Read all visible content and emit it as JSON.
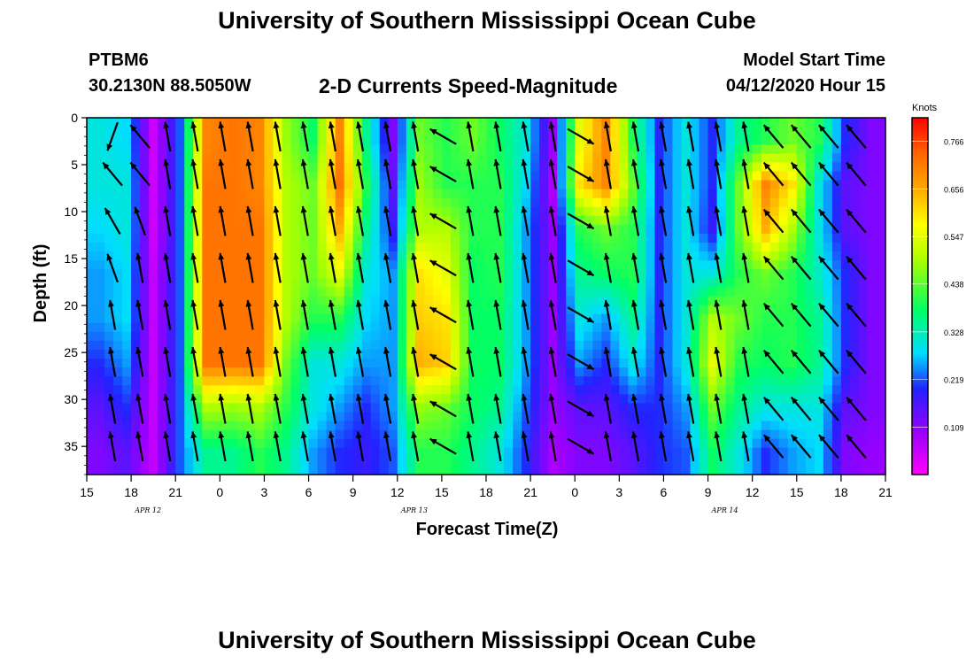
{
  "header": {
    "title": "University of Southern Mississippi Ocean Cube",
    "station": "PTBM6",
    "coords": "30.2130N 88.5050W",
    "chart_title": "2-D Currents Speed-Magnitude",
    "model_start_label": "Model Start Time",
    "model_start_value": "04/12/2020 Hour 15"
  },
  "footer": {
    "title": "University of Southern Mississippi Ocean Cube"
  },
  "chart_data": {
    "type": "heatmap",
    "title": "2-D Currents Speed-Magnitude",
    "xlabel": "Forecast Time(Z)",
    "ylabel": "Depth (ft)",
    "x_ticks": [
      "15",
      "18",
      "21",
      "0",
      "3",
      "6",
      "9",
      "12",
      "15",
      "18",
      "21",
      "0",
      "3",
      "6",
      "9",
      "12",
      "15",
      "18",
      "21"
    ],
    "date_labels": [
      {
        "text": "APR 12",
        "after_tick": 1
      },
      {
        "text": "APR 13",
        "after_tick": 7
      },
      {
        "text": "APR 14",
        "after_tick": 14
      }
    ],
    "y_ticks": [
      0,
      5,
      10,
      15,
      20,
      25,
      30,
      35
    ],
    "y_range": [
      0,
      38
    ],
    "colorbar": {
      "label": "Knots",
      "ticks": [
        "0.766",
        "0.656",
        "0.547",
        "0.438",
        "0.328",
        "0.219",
        "0.109"
      ],
      "range": [
        0,
        0.82
      ]
    },
    "depths_ft": [
      0,
      5,
      10,
      15,
      20,
      25,
      30,
      35
    ],
    "speed_knots": [
      [
        0.3,
        0.28,
        0.05,
        0.22,
        0.7,
        0.72,
        0.7,
        0.48,
        0.38,
        0.7,
        0.35,
        0.12,
        0.45,
        0.4,
        0.45,
        0.38,
        0.3,
        0.1,
        0.55,
        0.7,
        0.4,
        0.2,
        0.3,
        0.2,
        0.35,
        0.4,
        0.45,
        0.4,
        0.2,
        0.12
      ],
      [
        0.3,
        0.3,
        0.05,
        0.22,
        0.72,
        0.72,
        0.7,
        0.5,
        0.45,
        0.72,
        0.4,
        0.15,
        0.48,
        0.4,
        0.4,
        0.4,
        0.28,
        0.08,
        0.6,
        0.7,
        0.45,
        0.2,
        0.3,
        0.2,
        0.45,
        0.7,
        0.6,
        0.3,
        0.15,
        0.12
      ],
      [
        0.28,
        0.3,
        0.05,
        0.22,
        0.72,
        0.72,
        0.72,
        0.5,
        0.45,
        0.65,
        0.35,
        0.18,
        0.5,
        0.5,
        0.4,
        0.4,
        0.25,
        0.1,
        0.4,
        0.45,
        0.4,
        0.2,
        0.3,
        0.18,
        0.45,
        0.65,
        0.5,
        0.3,
        0.15,
        0.12
      ],
      [
        0.25,
        0.28,
        0.06,
        0.22,
        0.72,
        0.72,
        0.72,
        0.5,
        0.45,
        0.55,
        0.3,
        0.25,
        0.6,
        0.55,
        0.38,
        0.4,
        0.25,
        0.1,
        0.35,
        0.38,
        0.4,
        0.2,
        0.3,
        0.3,
        0.4,
        0.45,
        0.4,
        0.32,
        0.2,
        0.12
      ],
      [
        0.25,
        0.28,
        0.06,
        0.22,
        0.72,
        0.72,
        0.72,
        0.5,
        0.4,
        0.4,
        0.28,
        0.25,
        0.62,
        0.6,
        0.38,
        0.38,
        0.25,
        0.1,
        0.3,
        0.25,
        0.35,
        0.2,
        0.3,
        0.5,
        0.45,
        0.4,
        0.4,
        0.35,
        0.2,
        0.12
      ],
      [
        0.2,
        0.25,
        0.06,
        0.22,
        0.72,
        0.72,
        0.72,
        0.45,
        0.3,
        0.3,
        0.25,
        0.25,
        0.65,
        0.62,
        0.38,
        0.38,
        0.25,
        0.1,
        0.25,
        0.2,
        0.3,
        0.2,
        0.3,
        0.55,
        0.4,
        0.38,
        0.4,
        0.35,
        0.2,
        0.12
      ],
      [
        0.15,
        0.2,
        0.06,
        0.22,
        0.5,
        0.48,
        0.5,
        0.4,
        0.3,
        0.25,
        0.2,
        0.25,
        0.48,
        0.45,
        0.38,
        0.35,
        0.22,
        0.1,
        0.15,
        0.15,
        0.2,
        0.2,
        0.25,
        0.45,
        0.35,
        0.3,
        0.3,
        0.3,
        0.15,
        0.12
      ],
      [
        0.12,
        0.15,
        0.06,
        0.22,
        0.35,
        0.35,
        0.4,
        0.35,
        0.25,
        0.2,
        0.18,
        0.22,
        0.4,
        0.4,
        0.35,
        0.3,
        0.2,
        0.08,
        0.12,
        0.12,
        0.15,
        0.2,
        0.22,
        0.38,
        0.3,
        0.2,
        0.25,
        0.28,
        0.12,
        0.1
      ]
    ],
    "arrows_time_step": 1,
    "arrows_depth_ft": [
      2,
      6,
      11,
      16,
      21,
      26,
      31,
      35
    ],
    "arrow_directions_deg": [
      [
        200,
        -40,
        -10,
        -10,
        -10,
        -10,
        -10,
        -10,
        -10,
        -10,
        -10,
        -10,
        -60,
        -10,
        -10,
        -10,
        -10,
        120,
        -10,
        -10,
        -10,
        -10,
        -10,
        -10,
        -40,
        -40,
        -40,
        -40
      ],
      [
        -40,
        -40,
        -10,
        -10,
        -10,
        -10,
        -10,
        -10,
        -10,
        -10,
        -10,
        -10,
        -60,
        -10,
        -10,
        -10,
        -10,
        120,
        -10,
        -10,
        -10,
        -10,
        -10,
        -10,
        -40,
        -40,
        -40,
        -40
      ],
      [
        -30,
        -20,
        -10,
        -10,
        -10,
        -10,
        -10,
        -10,
        -10,
        -10,
        -10,
        -10,
        -60,
        -10,
        -10,
        -10,
        -10,
        120,
        -10,
        -10,
        -10,
        -10,
        -10,
        -10,
        -40,
        -40,
        -40,
        -40
      ],
      [
        -20,
        -10,
        -10,
        -10,
        -10,
        -10,
        -10,
        -10,
        -10,
        -10,
        -10,
        -10,
        -60,
        -10,
        -10,
        -10,
        -10,
        120,
        -10,
        -10,
        -10,
        -10,
        -10,
        -10,
        -40,
        -40,
        -40,
        -40
      ],
      [
        -10,
        -10,
        -10,
        -10,
        -10,
        -10,
        -10,
        -10,
        -10,
        -10,
        -10,
        -10,
        -60,
        -10,
        -10,
        -10,
        -10,
        120,
        -10,
        -10,
        -10,
        -10,
        -10,
        -10,
        -40,
        -40,
        -40,
        -40
      ],
      [
        -10,
        -10,
        -10,
        -10,
        -10,
        -10,
        -10,
        -10,
        -10,
        -10,
        -10,
        -10,
        -60,
        -10,
        -10,
        -10,
        -10,
        120,
        -10,
        -10,
        -10,
        -10,
        -10,
        -10,
        -40,
        -40,
        -40,
        -40
      ],
      [
        -10,
        -10,
        -10,
        -10,
        -10,
        -10,
        -10,
        -10,
        -10,
        -10,
        -10,
        -10,
        -60,
        -10,
        -10,
        -10,
        -10,
        120,
        -10,
        -10,
        -10,
        -10,
        -10,
        -10,
        -40,
        -40,
        -40,
        -40
      ],
      [
        -10,
        -10,
        -10,
        -10,
        -10,
        -10,
        -10,
        -10,
        -10,
        -10,
        -10,
        -10,
        -60,
        -10,
        -10,
        -10,
        -10,
        120,
        -10,
        -10,
        -10,
        -10,
        -10,
        -10,
        -40,
        -40,
        -40,
        -40
      ]
    ]
  }
}
